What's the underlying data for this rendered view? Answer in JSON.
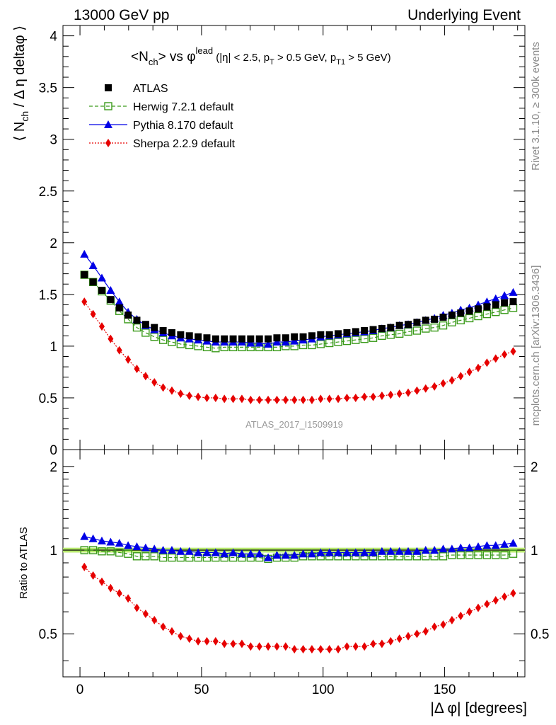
{
  "header": {
    "left": "13000 GeV pp",
    "right": "Underlying Event"
  },
  "title": {
    "main": "<N",
    "main_sub": "ch",
    "vs": "> vs ",
    "phi": "φ",
    "phi_sup": "lead",
    "cuts_a": " (|η| < 2.5, p",
    "cuts_a_sub": "T",
    "cuts_b": " > 0.5 GeV, p",
    "cuts_b_sub": "T1",
    "cuts_c": " > 5 GeV)"
  },
  "side_labels": {
    "rivet": "Rivet 3.1.10, ≥ 300k events",
    "mcplots": "mcplots.cern.ch [arXiv:1306.3436]"
  },
  "analysis_id": "ATLAS_2017_I1509919",
  "axes": {
    "ylabel_main": "⟨ N",
    "ylabel_main_sub": "ch",
    "ylabel_main_rest": " / Δ η deltaφ ⟩",
    "ylabel_ratio": "Ratio to ATLAS",
    "xlabel": "|Δ φ| [degrees]"
  },
  "chart_data": [
    {
      "type": "scatter",
      "panel": "main",
      "xlim": [
        -7,
        183
      ],
      "ylim": [
        0,
        4.1
      ],
      "x_ticks": [
        0,
        50,
        100,
        150
      ],
      "y_ticks": [
        "0",
        "0.5",
        "1",
        "1.5",
        "2",
        "2.5",
        "3",
        "3.5",
        "4"
      ],
      "legend_position": "top-left",
      "x": [
        1.8,
        5.4,
        9.0,
        12.6,
        16.2,
        19.8,
        23.4,
        27.0,
        30.6,
        34.2,
        37.8,
        41.4,
        45.0,
        48.6,
        52.2,
        55.8,
        59.4,
        63.0,
        66.6,
        70.2,
        73.8,
        77.4,
        81.0,
        84.6,
        88.2,
        91.8,
        95.4,
        99.0,
        102.6,
        106.2,
        109.8,
        113.4,
        117.0,
        120.6,
        124.2,
        127.8,
        131.4,
        135.0,
        138.6,
        142.2,
        145.8,
        149.4,
        153.0,
        156.6,
        160.2,
        163.8,
        167.4,
        171.0,
        174.6,
        178.2
      ],
      "series": [
        {
          "name": "ATLAS",
          "color": "#000000",
          "marker": "filled-square",
          "values": [
            1.69,
            1.62,
            1.54,
            1.45,
            1.37,
            1.3,
            1.25,
            1.21,
            1.18,
            1.15,
            1.13,
            1.11,
            1.1,
            1.09,
            1.08,
            1.07,
            1.07,
            1.07,
            1.07,
            1.07,
            1.07,
            1.07,
            1.08,
            1.08,
            1.09,
            1.09,
            1.1,
            1.11,
            1.11,
            1.12,
            1.13,
            1.14,
            1.15,
            1.16,
            1.17,
            1.18,
            1.2,
            1.21,
            1.23,
            1.25,
            1.26,
            1.28,
            1.3,
            1.32,
            1.34,
            1.36,
            1.38,
            1.4,
            1.42,
            1.43
          ]
        },
        {
          "name": "Herwig 7.2.1 default",
          "color": "#3a9a1a",
          "marker": "open-square",
          "line": "dashed",
          "values": [
            1.69,
            1.62,
            1.53,
            1.44,
            1.34,
            1.26,
            1.18,
            1.13,
            1.09,
            1.06,
            1.04,
            1.02,
            1.01,
            1.0,
            0.99,
            0.98,
            0.99,
            0.99,
            0.99,
            0.99,
            0.99,
            0.99,
            0.99,
            1.0,
            1.0,
            1.01,
            1.01,
            1.02,
            1.03,
            1.04,
            1.05,
            1.06,
            1.07,
            1.08,
            1.1,
            1.11,
            1.12,
            1.14,
            1.15,
            1.17,
            1.18,
            1.2,
            1.23,
            1.25,
            1.27,
            1.29,
            1.31,
            1.33,
            1.35,
            1.37
          ]
        },
        {
          "name": "Pythia 8.170 default",
          "color": "#0000e6",
          "marker": "filled-triangle",
          "line": "solid",
          "values": [
            1.89,
            1.78,
            1.66,
            1.54,
            1.43,
            1.33,
            1.26,
            1.2,
            1.16,
            1.13,
            1.1,
            1.08,
            1.07,
            1.06,
            1.05,
            1.04,
            1.04,
            1.04,
            1.04,
            1.03,
            1.03,
            1.02,
            1.04,
            1.04,
            1.05,
            1.06,
            1.07,
            1.09,
            1.1,
            1.11,
            1.12,
            1.13,
            1.14,
            1.15,
            1.17,
            1.18,
            1.2,
            1.21,
            1.23,
            1.25,
            1.27,
            1.3,
            1.32,
            1.35,
            1.37,
            1.4,
            1.43,
            1.46,
            1.49,
            1.52
          ]
        },
        {
          "name": "Sherpa 2.2.9 default",
          "color": "#e60000",
          "marker": "filled-diamond",
          "line": "dotted",
          "values": [
            1.43,
            1.31,
            1.19,
            1.07,
            0.96,
            0.87,
            0.78,
            0.71,
            0.65,
            0.6,
            0.57,
            0.54,
            0.52,
            0.51,
            0.5,
            0.5,
            0.49,
            0.49,
            0.49,
            0.48,
            0.48,
            0.48,
            0.48,
            0.48,
            0.48,
            0.48,
            0.48,
            0.49,
            0.49,
            0.49,
            0.5,
            0.5,
            0.51,
            0.51,
            0.52,
            0.53,
            0.54,
            0.55,
            0.57,
            0.59,
            0.61,
            0.64,
            0.67,
            0.71,
            0.75,
            0.79,
            0.84,
            0.88,
            0.92,
            0.95
          ]
        }
      ]
    },
    {
      "type": "scatter",
      "panel": "ratio",
      "xlim": [
        -7,
        183
      ],
      "ylim": [
        0.35,
        2.3
      ],
      "x_ticks": [
        0,
        50,
        100,
        150
      ],
      "y_ticks": [
        "0.5",
        "1",
        "2"
      ],
      "y_scale": "log",
      "band_color": "#b8ea6e",
      "x": [
        1.8,
        5.4,
        9.0,
        12.6,
        16.2,
        19.8,
        23.4,
        27.0,
        30.6,
        34.2,
        37.8,
        41.4,
        45.0,
        48.6,
        52.2,
        55.8,
        59.4,
        63.0,
        66.6,
        70.2,
        73.8,
        77.4,
        81.0,
        84.6,
        88.2,
        91.8,
        95.4,
        99.0,
        102.6,
        106.2,
        109.8,
        113.4,
        117.0,
        120.6,
        124.2,
        127.8,
        131.4,
        135.0,
        138.6,
        142.2,
        145.8,
        149.4,
        153.0,
        156.6,
        160.2,
        163.8,
        167.4,
        171.0,
        174.6,
        178.2
      ],
      "series": [
        {
          "name": "Herwig 7.2.1 default",
          "values": [
            1.0,
            1.0,
            0.99,
            0.99,
            0.98,
            0.97,
            0.95,
            0.95,
            0.95,
            0.94,
            0.94,
            0.94,
            0.94,
            0.94,
            0.94,
            0.94,
            0.94,
            0.94,
            0.94,
            0.94,
            0.94,
            0.93,
            0.94,
            0.94,
            0.94,
            0.95,
            0.95,
            0.95,
            0.95,
            0.95,
            0.95,
            0.95,
            0.95,
            0.95,
            0.95,
            0.95,
            0.95,
            0.95,
            0.95,
            0.95,
            0.95,
            0.95,
            0.96,
            0.96,
            0.96,
            0.96,
            0.96,
            0.96,
            0.96,
            0.97
          ]
        },
        {
          "name": "Pythia 8.170 default",
          "values": [
            1.12,
            1.1,
            1.08,
            1.07,
            1.06,
            1.04,
            1.03,
            1.02,
            1.01,
            1.0,
            1.0,
            0.99,
            0.99,
            0.98,
            0.98,
            0.98,
            0.97,
            0.98,
            0.97,
            0.97,
            0.97,
            0.94,
            0.96,
            0.96,
            0.96,
            0.97,
            0.97,
            0.98,
            0.98,
            0.98,
            0.98,
            0.98,
            0.98,
            0.98,
            0.99,
            0.99,
            0.99,
            0.99,
            0.99,
            1.0,
            1.0,
            1.01,
            1.01,
            1.02,
            1.02,
            1.03,
            1.04,
            1.04,
            1.05,
            1.06
          ]
        },
        {
          "name": "Sherpa 2.2.9 default",
          "values": [
            0.87,
            0.81,
            0.77,
            0.73,
            0.7,
            0.67,
            0.62,
            0.59,
            0.56,
            0.53,
            0.51,
            0.49,
            0.48,
            0.47,
            0.47,
            0.47,
            0.46,
            0.46,
            0.46,
            0.45,
            0.45,
            0.45,
            0.45,
            0.45,
            0.44,
            0.44,
            0.44,
            0.44,
            0.44,
            0.44,
            0.45,
            0.45,
            0.45,
            0.46,
            0.46,
            0.47,
            0.48,
            0.49,
            0.5,
            0.51,
            0.53,
            0.54,
            0.56,
            0.58,
            0.6,
            0.62,
            0.64,
            0.66,
            0.68,
            0.7
          ]
        }
      ]
    }
  ]
}
